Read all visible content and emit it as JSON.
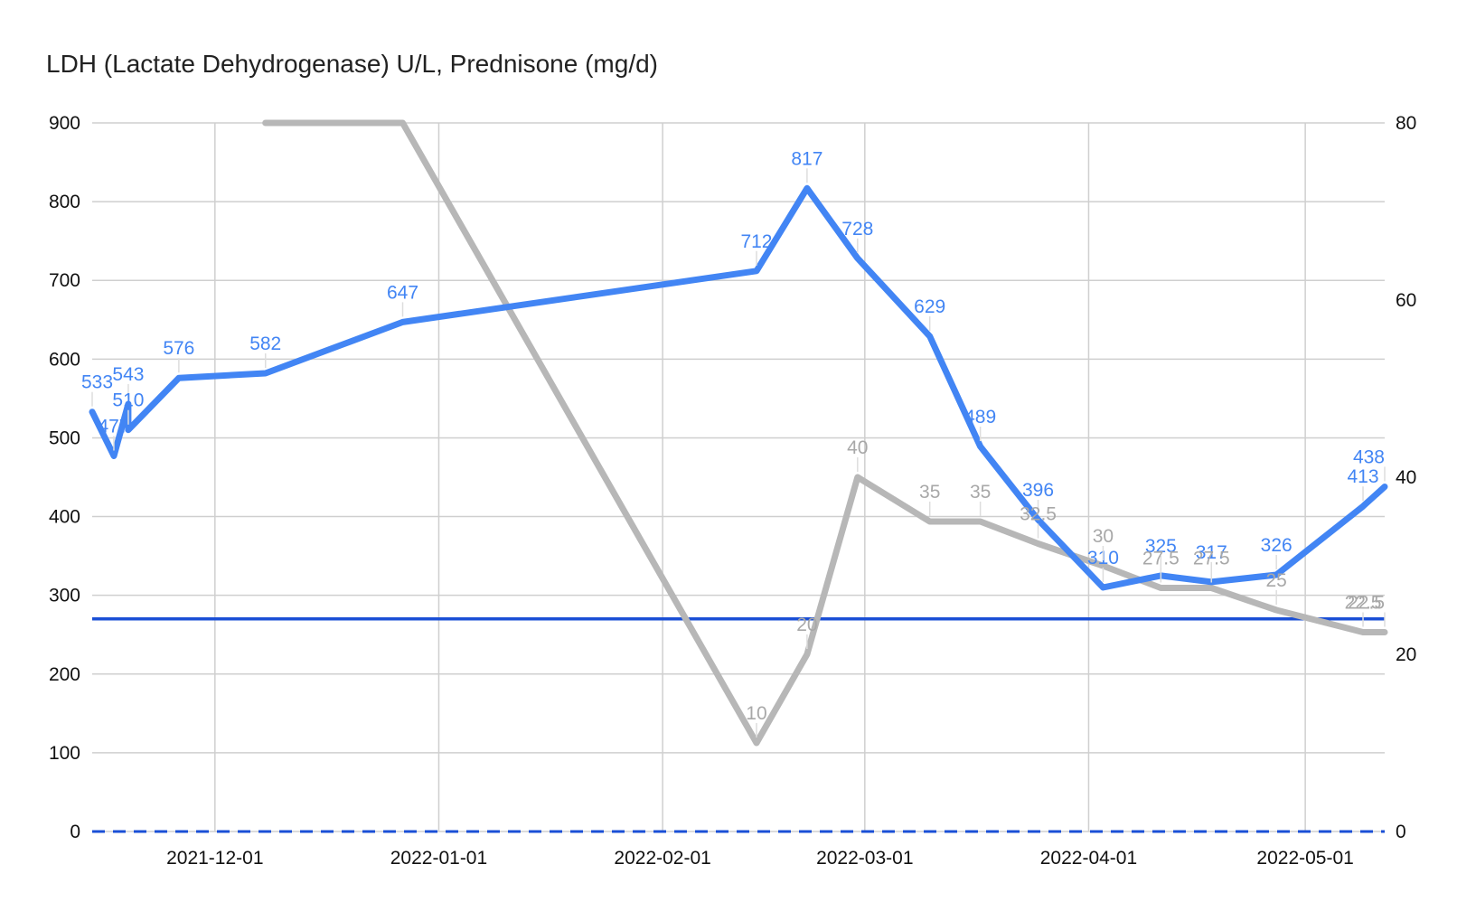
{
  "chart_data": {
    "type": "line",
    "title": "LDH (Lactate Dehydrogenase) U/L, Prednisone (mg/d)",
    "xlabel": "",
    "ylabel": "",
    "y2label": "",
    "x_axis": {
      "type": "date",
      "range": [
        "2021-11-14",
        "2022-05-12"
      ],
      "tick_labels": [
        "2021-12-01",
        "2022-01-01",
        "2022-02-01",
        "2022-03-01",
        "2022-04-01",
        "2022-05-01"
      ]
    },
    "ylim": [
      0,
      900
    ],
    "yticks": [
      0,
      100,
      200,
      300,
      400,
      500,
      600,
      700,
      800,
      900
    ],
    "y2lim": [
      0,
      80
    ],
    "y2ticks": [
      0,
      20,
      40,
      60,
      80
    ],
    "grid": true,
    "legend": "none",
    "series": [
      {
        "color": "#4285f4",
        "axis": "left",
        "line_width": 7,
        "show_labels": true,
        "points": [
          {
            "x": "2021-11-14",
            "y": 533,
            "label": "533"
          },
          {
            "x": "2021-11-17",
            "y": 477,
            "label": "477"
          },
          {
            "x": "2021-11-19",
            "y": 543,
            "label": "543"
          },
          {
            "x": "2021-11-19",
            "y": 510,
            "label": "510"
          },
          {
            "x": "2021-11-26",
            "y": 576,
            "label": "576"
          },
          {
            "x": "2021-12-08",
            "y": 582,
            "label": "582"
          },
          {
            "x": "2021-12-27",
            "y": 647,
            "label": "647"
          },
          {
            "x": "2022-02-14",
            "y": 712,
            "label": "712"
          },
          {
            "x": "2022-02-21",
            "y": 817,
            "label": "817"
          },
          {
            "x": "2022-02-28",
            "y": 728,
            "label": "728"
          },
          {
            "x": "2022-03-10",
            "y": 629,
            "label": "629"
          },
          {
            "x": "2022-03-17",
            "y": 489,
            "label": "489"
          },
          {
            "x": "2022-03-25",
            "y": 396,
            "label": "396"
          },
          {
            "x": "2022-04-03",
            "y": 310,
            "label": "310"
          },
          {
            "x": "2022-04-11",
            "y": 325,
            "label": "325"
          },
          {
            "x": "2022-04-18",
            "y": 317,
            "label": "317"
          },
          {
            "x": "2022-04-27",
            "y": 326,
            "label": "326"
          },
          {
            "x": "2022-05-09",
            "y": 413,
            "label": "413"
          },
          {
            "x": "2022-05-16",
            "y": 438,
            "label": "438"
          }
        ]
      },
      {
        "color": "#b7b7b7",
        "axis": "right",
        "line_width": 7,
        "show_labels": true,
        "points": [
          {
            "x": "2021-12-08",
            "y": 80
          },
          {
            "x": "2021-12-27",
            "y": 80
          },
          {
            "x": "2022-02-14",
            "y": 10,
            "label": "10"
          },
          {
            "x": "2022-02-21",
            "y": 20,
            "label": "20"
          },
          {
            "x": "2022-02-28",
            "y": 40,
            "label": "40"
          },
          {
            "x": "2022-03-10",
            "y": 35,
            "label": "35"
          },
          {
            "x": "2022-03-17",
            "y": 35,
            "label": "35"
          },
          {
            "x": "2022-03-25",
            "y": 32.5,
            "label": "32.5"
          },
          {
            "x": "2022-04-03",
            "y": 30,
            "label": "30"
          },
          {
            "x": "2022-04-11",
            "y": 27.5,
            "label": "27.5"
          },
          {
            "x": "2022-04-18",
            "y": 27.5,
            "label": "27.5"
          },
          {
            "x": "2022-04-27",
            "y": 25,
            "label": "25"
          },
          {
            "x": "2022-05-09",
            "y": 22.5,
            "label": "22.5"
          },
          {
            "x": "2022-05-16",
            "y": 22.5,
            "label": "22.5"
          }
        ]
      }
    ],
    "reference_lines": [
      {
        "axis": "left",
        "y": 270,
        "color": "#1a4fd6",
        "style": "solid"
      },
      {
        "axis": "left",
        "y": 0,
        "color": "#1a4fd6",
        "style": "dashed"
      }
    ]
  }
}
